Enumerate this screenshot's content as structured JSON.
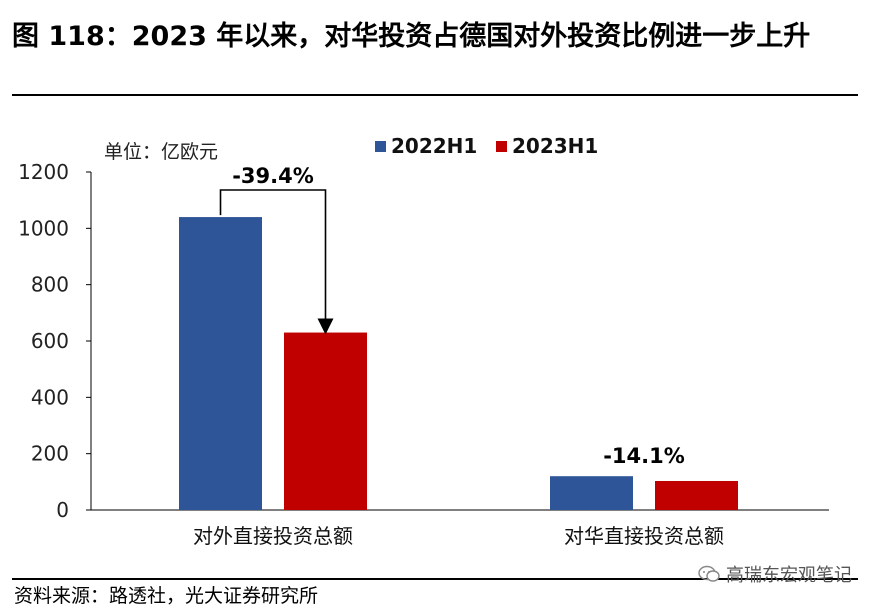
{
  "title": "图 118：2023 年以来，对华投资占德国对外投资比例进一步上升",
  "source": "资料来源：路透社，光大证券研究所",
  "watermark": "高瑞东宏观笔记",
  "colors": {
    "series_2022": "#2E5597",
    "series_2023": "#C00000"
  },
  "chart_data": {
    "type": "bar",
    "unit_label": "单位：亿欧元",
    "categories": [
      "对外直接投资总额",
      "对华直接投资总额"
    ],
    "series": [
      {
        "name": "2022H1",
        "values": [
          1040,
          120
        ]
      },
      {
        "name": "2023H1",
        "values": [
          630,
          103
        ]
      }
    ],
    "ylim": [
      0,
      1200
    ],
    "yticks": [
      0,
      200,
      400,
      600,
      800,
      1000,
      1200
    ],
    "legend": "top",
    "annotations": [
      {
        "category": "对外直接投资总额",
        "text": "-39.4%",
        "arrow": true
      },
      {
        "category": "对华直接投资总额",
        "text": "-14.1%",
        "arrow": false
      }
    ]
  }
}
